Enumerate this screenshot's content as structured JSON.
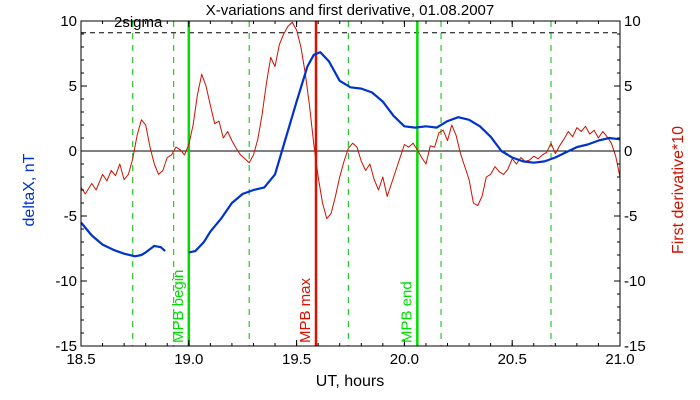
{
  "chart_data": {
    "type": "line",
    "title": "X-variations and first derivative, 01.08.2007",
    "xlabel": "UT, hours",
    "ylabel_left": "deltaX, nT",
    "ylabel_right": "First derivative*10",
    "xlim": [
      18.5,
      21.0
    ],
    "ylim": [
      -15,
      10
    ],
    "x_ticks": [
      "18.5",
      "19.0",
      "19.5",
      "20.0",
      "20.5",
      "21.0"
    ],
    "y_ticks": [
      "10",
      "5",
      "0",
      "-5",
      "-10",
      "-15"
    ],
    "sigma": {
      "label": "2sigma",
      "value": 9.1
    },
    "colors": {
      "deltaX": "#0033cc",
      "derivative": "#cc1100",
      "marker": "#00dd00",
      "guide": "#00bb00",
      "zero": "#000000"
    },
    "markers": [
      {
        "label": "MPB begin",
        "x": 19.0,
        "color": "#00dd00"
      },
      {
        "label": "MPB max",
        "x": 19.59,
        "color": "#dd1100"
      },
      {
        "label": "MPB end",
        "x": 20.06,
        "color": "#00dd00"
      }
    ],
    "guides": [
      18.74,
      18.93,
      19.28,
      19.74,
      20.17,
      20.68
    ],
    "series": [
      {
        "key": "deltaX",
        "points": [
          [
            18.5,
            -5.5
          ],
          [
            18.55,
            -6.5
          ],
          [
            18.6,
            -7.2
          ],
          [
            18.65,
            -7.6
          ],
          [
            18.7,
            -7.9
          ],
          [
            18.75,
            -8.1
          ],
          [
            18.78,
            -8.0
          ],
          [
            18.8,
            -7.8
          ],
          [
            18.84,
            -7.3
          ],
          [
            18.87,
            -7.4
          ],
          [
            18.89,
            -7.7
          ],
          [
            null,
            null
          ],
          [
            19.0,
            -7.8
          ],
          [
            19.03,
            -7.7
          ],
          [
            19.07,
            -7.0
          ],
          [
            19.1,
            -6.2
          ],
          [
            19.15,
            -5.2
          ],
          [
            19.2,
            -4.0
          ],
          [
            19.25,
            -3.3
          ],
          [
            19.3,
            -3.0
          ],
          [
            19.35,
            -2.8
          ],
          [
            19.4,
            -1.8
          ],
          [
            19.45,
            1.0
          ],
          [
            19.5,
            3.8
          ],
          [
            19.55,
            6.5
          ],
          [
            19.58,
            7.4
          ],
          [
            19.61,
            7.6
          ],
          [
            19.65,
            6.9
          ],
          [
            19.7,
            5.4
          ],
          [
            19.75,
            4.9
          ],
          [
            19.8,
            4.8
          ],
          [
            19.85,
            4.5
          ],
          [
            19.9,
            3.8
          ],
          [
            19.95,
            2.7
          ],
          [
            20.0,
            1.9
          ],
          [
            20.05,
            1.8
          ],
          [
            20.1,
            1.9
          ],
          [
            20.15,
            1.8
          ],
          [
            20.2,
            2.3
          ],
          [
            20.25,
            2.6
          ],
          [
            20.3,
            2.4
          ],
          [
            20.35,
            1.9
          ],
          [
            20.4,
            1.1
          ],
          [
            20.45,
            0.0
          ],
          [
            20.5,
            -0.5
          ],
          [
            20.55,
            -0.8
          ],
          [
            20.6,
            -0.9
          ],
          [
            20.65,
            -0.8
          ],
          [
            20.7,
            -0.5
          ],
          [
            20.75,
            -0.1
          ],
          [
            20.8,
            0.3
          ],
          [
            20.85,
            0.5
          ],
          [
            20.9,
            0.8
          ],
          [
            20.95,
            1.0
          ],
          [
            21.0,
            0.9
          ]
        ]
      },
      {
        "key": "derivative",
        "points": [
          [
            18.5,
            -2.8
          ],
          [
            18.52,
            -3.3
          ],
          [
            18.55,
            -2.5
          ],
          [
            18.57,
            -3.0
          ],
          [
            18.6,
            -1.8
          ],
          [
            18.62,
            -2.3
          ],
          [
            18.64,
            -1.5
          ],
          [
            18.66,
            -1.9
          ],
          [
            18.68,
            -1.0
          ],
          [
            18.7,
            -2.2
          ],
          [
            18.72,
            -1.8
          ],
          [
            18.74,
            -0.6
          ],
          [
            18.76,
            1.2
          ],
          [
            18.78,
            2.4
          ],
          [
            18.8,
            2.0
          ],
          [
            18.82,
            0.3
          ],
          [
            18.84,
            -1.0
          ],
          [
            18.86,
            -1.8
          ],
          [
            18.88,
            -1.5
          ],
          [
            18.9,
            -0.5
          ],
          [
            18.92,
            -0.3
          ],
          [
            18.94,
            0.3
          ],
          [
            18.96,
            0.1
          ],
          [
            18.98,
            -0.3
          ],
          [
            19.0,
            0.5
          ],
          [
            19.02,
            2.0
          ],
          [
            19.04,
            4.3
          ],
          [
            19.06,
            5.9
          ],
          [
            19.08,
            5.0
          ],
          [
            19.1,
            3.5
          ],
          [
            19.12,
            2.1
          ],
          [
            19.14,
            2.3
          ],
          [
            19.16,
            1.0
          ],
          [
            19.18,
            1.5
          ],
          [
            19.2,
            0.8
          ],
          [
            19.22,
            0.2
          ],
          [
            19.24,
            -0.3
          ],
          [
            19.26,
            -0.6
          ],
          [
            19.28,
            -0.9
          ],
          [
            19.3,
            -0.3
          ],
          [
            19.32,
            0.9
          ],
          [
            19.34,
            2.8
          ],
          [
            19.36,
            5.2
          ],
          [
            19.38,
            7.2
          ],
          [
            19.4,
            6.5
          ],
          [
            19.42,
            8.2
          ],
          [
            19.44,
            9.0
          ],
          [
            19.46,
            9.6
          ],
          [
            19.48,
            9.9
          ],
          [
            19.5,
            9.3
          ],
          [
            19.52,
            8.0
          ],
          [
            19.54,
            6.0
          ],
          [
            19.56,
            3.5
          ],
          [
            19.58,
            0.5
          ],
          [
            19.6,
            -2.0
          ],
          [
            19.62,
            -4.0
          ],
          [
            19.64,
            -5.2
          ],
          [
            19.66,
            -4.8
          ],
          [
            19.68,
            -3.5
          ],
          [
            19.7,
            -2.0
          ],
          [
            19.72,
            -0.8
          ],
          [
            19.74,
            0.2
          ],
          [
            19.76,
            0.6
          ],
          [
            19.78,
            0.3
          ],
          [
            19.8,
            -0.8
          ],
          [
            19.82,
            -1.5
          ],
          [
            19.84,
            -1.0
          ],
          [
            19.86,
            -2.2
          ],
          [
            19.88,
            -3.0
          ],
          [
            19.9,
            -2.0
          ],
          [
            19.92,
            -3.5
          ],
          [
            19.94,
            -2.5
          ],
          [
            19.96,
            -1.5
          ],
          [
            19.98,
            -0.5
          ],
          [
            20.0,
            0.5
          ],
          [
            20.02,
            0.3
          ],
          [
            20.04,
            0.6
          ],
          [
            20.06,
            0.1
          ],
          [
            20.08,
            -0.5
          ],
          [
            20.1,
            -1.0
          ],
          [
            20.12,
            0.4
          ],
          [
            20.14,
            0.3
          ],
          [
            20.16,
            1.4
          ],
          [
            20.18,
            1.6
          ],
          [
            20.2,
            0.8
          ],
          [
            20.22,
            2.0
          ],
          [
            20.24,
            1.2
          ],
          [
            20.26,
            -0.2
          ],
          [
            20.28,
            -1.2
          ],
          [
            20.3,
            -2.2
          ],
          [
            20.32,
            -4.0
          ],
          [
            20.34,
            -4.2
          ],
          [
            20.36,
            -3.5
          ],
          [
            20.38,
            -2.0
          ],
          [
            20.4,
            -1.8
          ],
          [
            20.42,
            -1.2
          ],
          [
            20.44,
            -1.6
          ],
          [
            20.46,
            -1.8
          ],
          [
            20.48,
            -1.4
          ],
          [
            20.5,
            -0.6
          ],
          [
            20.52,
            -1.0
          ],
          [
            20.54,
            -0.5
          ],
          [
            20.56,
            -0.8
          ],
          [
            20.58,
            -0.7
          ],
          [
            20.6,
            -0.4
          ],
          [
            20.62,
            -0.6
          ],
          [
            20.64,
            -0.3
          ],
          [
            20.66,
            -0.1
          ],
          [
            20.68,
            0.6
          ],
          [
            20.7,
            -0.2
          ],
          [
            20.72,
            0.4
          ],
          [
            20.74,
            0.9
          ],
          [
            20.76,
            1.5
          ],
          [
            20.78,
            1.1
          ],
          [
            20.8,
            1.8
          ],
          [
            20.82,
            1.5
          ],
          [
            20.84,
            1.9
          ],
          [
            20.86,
            1.3
          ],
          [
            20.88,
            1.6
          ],
          [
            20.9,
            1.0
          ],
          [
            20.92,
            1.5
          ],
          [
            20.94,
            1.1
          ],
          [
            20.96,
            0.6
          ],
          [
            20.98,
            -0.4
          ],
          [
            21.0,
            -2.0
          ]
        ]
      }
    ]
  }
}
